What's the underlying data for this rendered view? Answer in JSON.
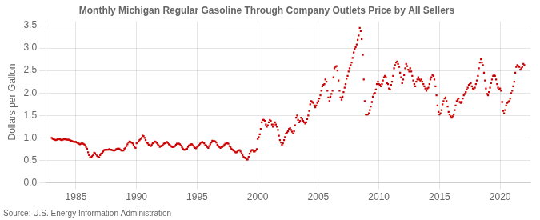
{
  "chart_data": {
    "type": "scatter",
    "title": "Monthly Michigan Regular Gasoline Through Company Outlets Price by All Sellers",
    "ylabel": "Dollars per Gallon",
    "annotations": [
      "Source: U.S. Energy Information Administration"
    ],
    "color": "#cc0000",
    "marker": "square",
    "grid": true,
    "xlim": [
      1982.5,
      2022.5
    ],
    "xticks": [
      1985,
      1990,
      1995,
      2000,
      2005,
      2010,
      2015,
      2020
    ],
    "ylim": [
      0.0,
      3.6
    ],
    "yticks": [
      {
        "value": 0.0,
        "label": "0.0"
      },
      0.5,
      {
        "value": 1.0,
        "label": "1.0"
      },
      1.5,
      {
        "value": 2.0,
        "label": "2.0"
      },
      2.5,
      {
        "value": 3.0,
        "label": "3.0"
      },
      3.5
    ],
    "x": [
      1983.0,
      1983.08,
      1983.17,
      1983.25,
      1983.33,
      1983.42,
      1983.5,
      1983.58,
      1983.67,
      1983.75,
      1983.83,
      1983.92,
      1984.0,
      1984.08,
      1984.17,
      1984.25,
      1984.33,
      1984.42,
      1984.5,
      1984.58,
      1984.67,
      1984.75,
      1984.83,
      1984.92,
      1985.0,
      1985.08,
      1985.17,
      1985.25,
      1985.33,
      1985.42,
      1985.5,
      1985.58,
      1985.67,
      1985.75,
      1985.83,
      1985.92,
      1986.0,
      1986.08,
      1986.17,
      1986.25,
      1986.33,
      1986.42,
      1986.5,
      1986.58,
      1986.67,
      1986.75,
      1986.83,
      1986.92,
      1987.0,
      1987.08,
      1987.17,
      1987.25,
      1987.33,
      1987.42,
      1987.5,
      1987.58,
      1987.67,
      1987.75,
      1987.83,
      1987.92,
      1988.0,
      1988.08,
      1988.17,
      1988.25,
      1988.33,
      1988.42,
      1988.5,
      1988.58,
      1988.67,
      1988.75,
      1988.83,
      1988.92,
      1989.0,
      1989.08,
      1989.17,
      1989.25,
      1989.33,
      1989.42,
      1989.5,
      1989.58,
      1989.67,
      1989.75,
      1989.83,
      1989.92,
      1990.0,
      1990.08,
      1990.17,
      1990.25,
      1990.33,
      1990.42,
      1990.5,
      1990.58,
      1990.67,
      1990.75,
      1990.83,
      1990.92,
      1991.0,
      1991.08,
      1991.17,
      1991.25,
      1991.33,
      1991.42,
      1991.5,
      1991.58,
      1991.67,
      1991.75,
      1991.83,
      1991.92,
      1992.0,
      1992.08,
      1992.17,
      1992.25,
      1992.33,
      1992.42,
      1992.5,
      1992.58,
      1992.67,
      1992.75,
      1992.83,
      1992.92,
      1993.0,
      1993.08,
      1993.17,
      1993.25,
      1993.33,
      1993.42,
      1993.5,
      1993.58,
      1993.67,
      1993.75,
      1993.83,
      1993.92,
      1994.0,
      1994.08,
      1994.17,
      1994.25,
      1994.33,
      1994.42,
      1994.5,
      1994.58,
      1994.67,
      1994.75,
      1994.83,
      1994.92,
      1995.0,
      1995.08,
      1995.17,
      1995.25,
      1995.33,
      1995.42,
      1995.5,
      1995.58,
      1995.67,
      1995.75,
      1995.83,
      1995.92,
      1996.0,
      1996.08,
      1996.17,
      1996.25,
      1996.33,
      1996.42,
      1996.5,
      1996.58,
      1996.67,
      1996.75,
      1996.83,
      1996.92,
      1997.0,
      1997.08,
      1997.17,
      1997.25,
      1997.33,
      1997.42,
      1997.5,
      1997.58,
      1997.67,
      1997.75,
      1997.83,
      1997.92,
      1998.0,
      1998.08,
      1998.17,
      1998.25,
      1998.33,
      1998.42,
      1998.5,
      1998.58,
      1998.67,
      1998.75,
      1998.83,
      1998.92,
      1999.0,
      1999.08,
      1999.17,
      1999.25,
      1999.33,
      1999.42,
      1999.5,
      1999.58,
      1999.67,
      1999.75,
      1999.83,
      1999.92,
      2000.0,
      2000.08,
      2000.17,
      2000.25,
      2000.33,
      2000.42,
      2000.5,
      2000.58,
      2000.67,
      2000.75,
      2000.83,
      2000.92,
      2001.0,
      2001.08,
      2001.17,
      2001.25,
      2001.33,
      2001.42,
      2001.5,
      2001.58,
      2001.67,
      2001.75,
      2001.83,
      2001.92,
      2002.0,
      2002.08,
      2002.17,
      2002.25,
      2002.33,
      2002.42,
      2002.5,
      2002.58,
      2002.67,
      2002.75,
      2002.83,
      2002.92,
      2003.0,
      2003.08,
      2003.17,
      2003.25,
      2003.33,
      2003.42,
      2003.5,
      2003.58,
      2003.67,
      2003.75,
      2003.83,
      2003.92,
      2004.0,
      2004.08,
      2004.17,
      2004.25,
      2004.33,
      2004.42,
      2004.5,
      2004.58,
      2004.67,
      2004.75,
      2004.83,
      2004.92,
      2005.0,
      2005.08,
      2005.17,
      2005.25,
      2005.33,
      2005.42,
      2005.5,
      2005.58,
      2005.67,
      2005.75,
      2005.83,
      2005.92,
      2006.0,
      2006.08,
      2006.17,
      2006.25,
      2006.33,
      2006.42,
      2006.5,
      2006.58,
      2006.67,
      2006.75,
      2006.83,
      2006.92,
      2007.0,
      2007.08,
      2007.17,
      2007.25,
      2007.33,
      2007.42,
      2007.5,
      2007.58,
      2007.67,
      2007.75,
      2007.83,
      2007.92,
      2008.0,
      2008.08,
      2008.17,
      2008.25,
      2008.33,
      2008.42,
      2008.5,
      2008.58,
      2008.67,
      2008.75,
      2008.83,
      2008.92,
      2009.0,
      2009.08,
      2009.17,
      2009.25,
      2009.33,
      2009.42,
      2009.5,
      2009.58,
      2009.67,
      2009.75,
      2009.83,
      2009.92,
      2010.0,
      2010.08,
      2010.17,
      2010.25,
      2010.33,
      2010.42,
      2010.5,
      2010.58,
      2010.67,
      2010.75,
      2010.83,
      2010.92,
      2011.0,
      2011.08,
      2011.17,
      2011.25,
      2011.33,
      2011.42,
      2011.5,
      2011.58,
      2011.67,
      2011.75,
      2011.83,
      2011.92,
      2012.0,
      2012.08,
      2012.17,
      2012.25,
      2012.33,
      2012.42,
      2012.5,
      2012.58,
      2012.67,
      2012.75,
      2012.83,
      2012.92,
      2013.0,
      2013.08,
      2013.17,
      2013.25,
      2013.33,
      2013.42,
      2013.5,
      2013.58,
      2013.67,
      2013.75,
      2013.83,
      2013.92,
      2014.0,
      2014.08,
      2014.17,
      2014.25,
      2014.33,
      2014.42,
      2014.5,
      2014.58,
      2014.67,
      2014.75,
      2014.83,
      2014.92,
      2015.0,
      2015.08,
      2015.17,
      2015.25,
      2015.33,
      2015.42,
      2015.5,
      2015.58,
      2015.67,
      2015.75,
      2015.83,
      2015.92,
      2016.0,
      2016.08,
      2016.17,
      2016.25,
      2016.33,
      2016.42,
      2016.5,
      2016.58,
      2016.67,
      2016.75,
      2016.83,
      2016.92,
      2017.0,
      2017.08,
      2017.17,
      2017.25,
      2017.33,
      2017.42,
      2017.5,
      2017.58,
      2017.67,
      2017.75,
      2017.83,
      2017.92,
      2018.0,
      2018.08,
      2018.17,
      2018.25,
      2018.33,
      2018.42,
      2018.5,
      2018.58,
      2018.67,
      2018.75,
      2018.83,
      2018.92,
      2019.0,
      2019.08,
      2019.17,
      2019.25,
      2019.33,
      2019.42,
      2019.5,
      2019.58,
      2019.67,
      2019.75,
      2019.83,
      2019.92,
      2020.0,
      2020.08,
      2020.17,
      2020.25,
      2020.33,
      2020.42,
      2020.5,
      2020.58,
      2020.67,
      2020.75,
      2020.83,
      2020.92,
      2021.0,
      2021.08,
      2021.17,
      2021.25,
      2021.33,
      2021.42,
      2021.5,
      2021.58,
      2021.67,
      2021.75,
      2021.83,
      2021.92,
      2022.0
    ],
    "values": [
      1.0,
      0.98,
      0.97,
      0.96,
      0.95,
      0.96,
      0.97,
      0.98,
      0.97,
      0.96,
      0.95,
      0.96,
      0.98,
      0.97,
      0.97,
      0.96,
      0.96,
      0.96,
      0.95,
      0.94,
      0.93,
      0.92,
      0.91,
      0.91,
      0.91,
      0.9,
      0.88,
      0.87,
      0.86,
      0.87,
      0.88,
      0.87,
      0.86,
      0.84,
      0.8,
      0.76,
      0.68,
      0.62,
      0.57,
      0.57,
      0.59,
      0.62,
      0.67,
      0.66,
      0.63,
      0.6,
      0.58,
      0.57,
      0.62,
      0.65,
      0.67,
      0.7,
      0.73,
      0.74,
      0.74,
      0.74,
      0.74,
      0.75,
      0.74,
      0.74,
      0.73,
      0.72,
      0.72,
      0.73,
      0.75,
      0.76,
      0.76,
      0.76,
      0.74,
      0.72,
      0.72,
      0.72,
      0.76,
      0.78,
      0.82,
      0.86,
      0.9,
      0.92,
      0.91,
      0.9,
      0.88,
      0.85,
      0.8,
      0.78,
      0.88,
      0.9,
      0.92,
      0.95,
      0.98,
      1.0,
      1.05,
      1.04,
      1.0,
      0.95,
      0.9,
      0.88,
      0.85,
      0.83,
      0.82,
      0.85,
      0.88,
      0.9,
      0.92,
      0.91,
      0.89,
      0.86,
      0.83,
      0.8,
      0.82,
      0.82,
      0.84,
      0.87,
      0.88,
      0.9,
      0.91,
      0.89,
      0.86,
      0.84,
      0.82,
      0.8,
      0.8,
      0.8,
      0.82,
      0.85,
      0.87,
      0.87,
      0.87,
      0.86,
      0.83,
      0.79,
      0.76,
      0.74,
      0.74,
      0.75,
      0.76,
      0.8,
      0.83,
      0.85,
      0.86,
      0.86,
      0.83,
      0.8,
      0.78,
      0.77,
      0.8,
      0.82,
      0.84,
      0.87,
      0.9,
      0.91,
      0.9,
      0.88,
      0.84,
      0.83,
      0.8,
      0.78,
      0.82,
      0.86,
      0.9,
      0.94,
      0.93,
      0.93,
      0.92,
      0.9,
      0.85,
      0.82,
      0.8,
      0.78,
      0.8,
      0.8,
      0.82,
      0.85,
      0.87,
      0.88,
      0.88,
      0.87,
      0.82,
      0.79,
      0.76,
      0.74,
      0.72,
      0.7,
      0.68,
      0.68,
      0.7,
      0.72,
      0.73,
      0.7,
      0.66,
      0.62,
      0.58,
      0.56,
      0.55,
      0.52,
      0.52,
      0.58,
      0.65,
      0.7,
      0.73,
      0.73,
      0.7,
      0.7,
      0.72,
      0.75,
      0.98,
      1.02,
      1.08,
      1.2,
      1.35,
      1.4,
      1.4,
      1.38,
      1.3,
      1.25,
      1.28,
      1.35,
      1.4,
      1.38,
      1.3,
      1.25,
      1.3,
      1.35,
      1.3,
      1.25,
      1.18,
      1.05,
      0.95,
      0.9,
      0.85,
      0.88,
      0.95,
      1.02,
      1.1,
      1.12,
      1.15,
      1.2,
      1.22,
      1.18,
      1.14,
      1.1,
      1.15,
      1.28,
      1.45,
      1.5,
      1.4,
      1.35,
      1.38,
      1.45,
      1.42,
      1.38,
      1.35,
      1.32,
      1.35,
      1.42,
      1.5,
      1.6,
      1.75,
      1.82,
      1.8,
      1.78,
      1.72,
      1.68,
      1.72,
      1.78,
      1.82,
      1.88,
      1.95,
      2.05,
      2.15,
      2.18,
      2.2,
      2.3,
      2.25,
      2.05,
      1.9,
      1.82,
      1.92,
      1.98,
      2.05,
      2.35,
      2.55,
      2.58,
      2.6,
      2.5,
      2.28,
      2.05,
      1.9,
      1.85,
      1.92,
      2.02,
      2.12,
      2.2,
      2.32,
      2.38,
      2.48,
      2.55,
      2.62,
      2.68,
      2.78,
      2.9,
      2.98,
      3.02,
      3.08,
      3.18,
      3.28,
      3.45,
      3.38,
      3.2,
      2.85,
      2.3,
      1.82,
      1.52,
      1.52,
      1.52,
      1.55,
      1.62,
      1.7,
      1.8,
      1.92,
      1.98,
      2.0,
      2.08,
      2.2,
      2.25,
      2.2,
      2.18,
      2.15,
      2.2,
      2.28,
      2.35,
      2.38,
      2.35,
      2.22,
      2.2,
      2.1,
      2.08,
      2.18,
      2.25,
      2.38,
      2.55,
      2.62,
      2.68,
      2.7,
      2.65,
      2.58,
      2.45,
      2.35,
      2.22,
      2.3,
      2.4,
      2.55,
      2.65,
      2.6,
      2.52,
      2.48,
      2.55,
      2.48,
      2.38,
      2.28,
      2.2,
      2.15,
      2.25,
      2.3,
      2.35,
      2.3,
      2.28,
      2.3,
      2.25,
      2.2,
      2.15,
      2.1,
      2.05,
      2.1,
      2.12,
      2.2,
      2.3,
      2.35,
      2.4,
      2.38,
      2.3,
      2.15,
      1.95,
      1.72,
      1.58,
      1.52,
      1.55,
      1.62,
      1.75,
      1.82,
      1.88,
      1.9,
      1.82,
      1.7,
      1.58,
      1.52,
      1.48,
      1.45,
      1.48,
      1.52,
      1.62,
      1.72,
      1.82,
      1.85,
      1.88,
      1.8,
      1.78,
      1.8,
      1.88,
      1.95,
      1.98,
      2.02,
      2.08,
      2.12,
      2.18,
      2.2,
      2.22,
      2.15,
      2.1,
      2.08,
      2.12,
      2.2,
      2.28,
      2.38,
      2.55,
      2.68,
      2.75,
      2.68,
      2.62,
      2.45,
      2.28,
      2.1,
      1.98,
      1.95,
      2.02,
      2.12,
      2.22,
      2.3,
      2.38,
      2.4,
      2.38,
      2.3,
      2.2,
      2.12,
      2.08,
      2.1,
      2.05,
      1.8,
      1.6,
      1.55,
      1.62,
      1.72,
      1.78,
      1.8,
      1.82,
      1.88,
      2.0,
      2.05,
      2.15,
      2.25,
      2.45,
      2.58,
      2.62,
      2.6,
      2.58,
      2.52,
      2.55,
      2.58,
      2.65,
      2.62
    ]
  }
}
